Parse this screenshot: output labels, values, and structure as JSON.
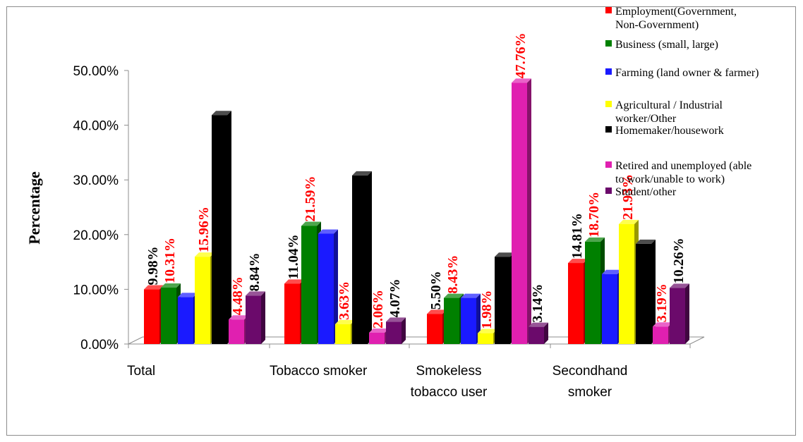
{
  "chart_data": {
    "type": "bar",
    "title": "",
    "xlabel": "",
    "ylabel": "Percentage",
    "ylim": [
      0,
      50
    ],
    "yticks": [
      "0.00%",
      "10.00%",
      "20.00%",
      "30.00%",
      "40.00%",
      "50.00%"
    ],
    "categories": [
      [
        "Total"
      ],
      [
        "Tobacco smoker"
      ],
      [
        "Smokeless",
        "tobacco user"
      ],
      [
        "Secondhand",
        "smoker"
      ]
    ],
    "series": [
      {
        "name": [
          "Employment(Government,",
          "Non-Government)"
        ],
        "color": "#ff0000",
        "label_color": "#000000",
        "values": [
          9.98,
          11.04,
          5.5,
          14.81
        ],
        "labels": [
          "9.98%",
          "11.04%",
          "5.50%",
          "14.81%"
        ]
      },
      {
        "name": [
          "Business (small, large)"
        ],
        "color": "#008000",
        "label_color": "#ff0000",
        "values": [
          10.31,
          21.59,
          8.43,
          18.7
        ],
        "labels": [
          "10.31%",
          "21.59%",
          "8.43%",
          "18.70%"
        ]
      },
      {
        "name": [
          "Farming (land owner & farmer)"
        ],
        "color": "#1a1aff",
        "label_color": "#ffffff",
        "values": [
          8.58,
          20.17,
          8.43,
          12.79
        ],
        "labels": [
          "8.58%",
          "20.17%",
          "8.43%",
          "12.79%"
        ]
      },
      {
        "name": [
          "Agricultural / Industrial",
          "worker/Other"
        ],
        "color": "#ffff00",
        "label_color": "#ff0000",
        "values": [
          15.96,
          3.63,
          1.98,
          21.93
        ],
        "labels": [
          "15.96%",
          "3.63%",
          "1.98%",
          "21.93%"
        ]
      },
      {
        "name": [
          "Homemaker/housework"
        ],
        "color": "#000000",
        "label_color": "#ffffff",
        "values": [
          41.85,
          30.81,
          15.95,
          18.31
        ],
        "labels": [
          "41.85%",
          "30.81%",
          "15.95%",
          "18.31%"
        ]
      },
      {
        "name": [
          "Retired and unemployed (able",
          "to work/unable to work)"
        ],
        "color": "#e020b0",
        "label_color": "#ff0000",
        "values": [
          4.48,
          2.06,
          47.76,
          3.19
        ],
        "labels": [
          "4.48%",
          "2.06%",
          "47.76%",
          "3.19%"
        ]
      },
      {
        "name": [
          "Student/other"
        ],
        "color": "#6b0a6b",
        "label_color": "#000000",
        "values": [
          8.84,
          4.07,
          3.14,
          10.26
        ],
        "labels": [
          "8.84%",
          "4.07%",
          "3.14%",
          "10.26%"
        ]
      }
    ],
    "grid": false,
    "legend_position": "top-right"
  }
}
